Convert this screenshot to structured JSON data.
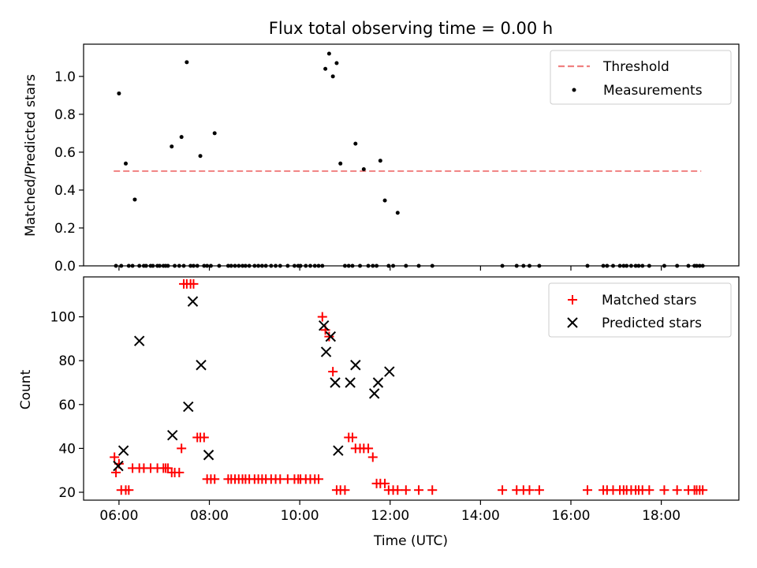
{
  "chart_data": [
    {
      "type": "scatter",
      "title": "Flux total observing time = 0.00 h",
      "ylabel": "Matched/Predicted stars",
      "xlim": [
        "05:13",
        "19:43"
      ],
      "ylim": [
        0,
        1.17
      ],
      "yticks": [
        "0.0",
        "0.2",
        "0.4",
        "0.6",
        "0.8",
        "1.0"
      ],
      "legend_placement": "top-right",
      "threshold": {
        "name": "Threshold",
        "value": 0.5,
        "x_range": [
          "05:53",
          "18:53"
        ],
        "color": "#f08080",
        "style": "dashed"
      },
      "series": [
        {
          "name": "Measurements",
          "color": "#000000",
          "marker": "dot",
          "x": [
            "05:56",
            "06:00",
            "06:03",
            "06:09",
            "06:13",
            "06:18",
            "06:21",
            "06:27",
            "06:33",
            "06:36",
            "06:42",
            "06:45",
            "06:51",
            "06:54",
            "06:59",
            "07:02",
            "07:05",
            "07:10",
            "07:14",
            "07:20",
            "07:23",
            "07:26",
            "07:30",
            "07:35",
            "07:39",
            "07:44",
            "07:48",
            "07:53",
            "07:57",
            "08:02",
            "08:07",
            "08:13",
            "08:25",
            "08:29",
            "08:34",
            "08:39",
            "08:44",
            "08:48",
            "08:53",
            "09:00",
            "09:05",
            "09:10",
            "09:15",
            "09:22",
            "09:28",
            "09:34",
            "09:44",
            "09:53",
            "09:58",
            "10:01",
            "10:08",
            "10:14",
            "10:20",
            "10:25",
            "10:30",
            "10:34",
            "10:39",
            "10:44",
            "10:49",
            "10:54",
            "11:00",
            "11:05",
            "11:10",
            "11:14",
            "11:20",
            "11:25",
            "11:31",
            "11:37",
            "11:42",
            "11:47",
            "11:53",
            "11:58",
            "12:04",
            "12:10",
            "12:21",
            "12:38",
            "12:56",
            "14:29",
            "14:48",
            "14:57",
            "15:05",
            "15:18",
            "16:22",
            "16:43",
            "16:48",
            "16:56",
            "17:05",
            "17:10",
            "17:14",
            "17:20",
            "17:26",
            "17:30",
            "17:35",
            "17:44",
            "18:04",
            "18:21",
            "18:36",
            "18:44",
            "18:47",
            "18:51",
            "18:55"
          ],
          "y": [
            0.0,
            0.91,
            0.0,
            0.54,
            0.0,
            0.0,
            0.35,
            0.0,
            0.0,
            0.0,
            0.0,
            0.0,
            0.0,
            0.0,
            0.0,
            0.0,
            0.0,
            0.63,
            0.0,
            0.0,
            0.68,
            0.0,
            1.075,
            0.0,
            0.0,
            0.0,
            0.58,
            0.0,
            0.0,
            0.0,
            0.7,
            0.0,
            0.0,
            0.0,
            0.0,
            0.0,
            0.0,
            0.0,
            0.0,
            0.0,
            0.0,
            0.0,
            0.0,
            0.0,
            0.0,
            0.0,
            0.0,
            0.0,
            0.0,
            0.0,
            0.0,
            0.0,
            0.0,
            0.0,
            0.0,
            1.04,
            1.12,
            1.0,
            1.07,
            0.54,
            0.0,
            0.0,
            0.0,
            0.645,
            0.0,
            0.51,
            0.0,
            0.0,
            0.0,
            0.555,
            0.345,
            0.0,
            0.0,
            0.28,
            0.0,
            0.0,
            0.0,
            0.0,
            0.0,
            0.0,
            0.0,
            0.0,
            0.0,
            0.0,
            0.0,
            0.0,
            0.0,
            0.0,
            0.0,
            0.0,
            0.0,
            0.0,
            0.0,
            0.0,
            0.0,
            0.0,
            0.0,
            0.0,
            0.0,
            0.0,
            0.0
          ]
        }
      ]
    },
    {
      "type": "scatter",
      "xlabel": "Time (UTC)",
      "ylabel": "Count",
      "xlim": [
        "05:13",
        "19:43"
      ],
      "ylim": [
        16.4,
        118.2
      ],
      "yticks": [
        "20",
        "40",
        "60",
        "80",
        "100"
      ],
      "xticks": [
        "06:00",
        "08:00",
        "10:00",
        "12:00",
        "14:00",
        "16:00",
        "18:00"
      ],
      "legend_placement": "top-right",
      "series": [
        {
          "name": "Matched stars",
          "color": "#ff0000",
          "marker": "plus",
          "x": [
            "05:54",
            "05:56",
            "06:00",
            "06:03",
            "06:09",
            "06:13",
            "06:18",
            "06:27",
            "06:33",
            "06:42",
            "06:51",
            "06:59",
            "07:02",
            "07:05",
            "07:10",
            "07:14",
            "07:20",
            "07:23",
            "07:26",
            "07:30",
            "07:35",
            "07:39",
            "07:44",
            "07:48",
            "07:53",
            "07:57",
            "08:02",
            "08:07",
            "08:25",
            "08:29",
            "08:34",
            "08:39",
            "08:44",
            "08:48",
            "08:53",
            "09:00",
            "09:05",
            "09:10",
            "09:15",
            "09:22",
            "09:28",
            "09:34",
            "09:44",
            "09:53",
            "09:58",
            "10:01",
            "10:08",
            "10:14",
            "10:20",
            "10:25",
            "10:30",
            "10:34",
            "10:39",
            "10:44",
            "10:49",
            "10:54",
            "11:00",
            "11:05",
            "11:10",
            "11:14",
            "11:20",
            "11:25",
            "11:31",
            "11:37",
            "11:42",
            "11:47",
            "11:53",
            "11:58",
            "12:04",
            "12:10",
            "12:21",
            "12:38",
            "12:56",
            "14:29",
            "14:48",
            "14:57",
            "15:05",
            "15:18",
            "16:22",
            "16:43",
            "16:48",
            "16:56",
            "17:05",
            "17:10",
            "17:14",
            "17:20",
            "17:26",
            "17:30",
            "17:35",
            "17:44",
            "18:04",
            "18:21",
            "18:36",
            "18:44",
            "18:47",
            "18:51",
            "18:55"
          ],
          "y": [
            36,
            29,
            33,
            21,
            21,
            21,
            31,
            31,
            31,
            31,
            31,
            31,
            31,
            31,
            29,
            29,
            29,
            40,
            115,
            115,
            115,
            115,
            45,
            45,
            45,
            26,
            26,
            26,
            26,
            26,
            26,
            26,
            26,
            26,
            26,
            26,
            26,
            26,
            26,
            26,
            26,
            26,
            26,
            26,
            26,
            26,
            26,
            26,
            26,
            26,
            100,
            94,
            91,
            75,
            21,
            21,
            21,
            45,
            45,
            40,
            40,
            40,
            40,
            36,
            24,
            24,
            24,
            21,
            21,
            21,
            21,
            21,
            21,
            21,
            21,
            21,
            21,
            21,
            21,
            21,
            21,
            21,
            21,
            21,
            21,
            21,
            21,
            21,
            21,
            21,
            21,
            21,
            21,
            21,
            21,
            21,
            21
          ]
        },
        {
          "name": "Predicted stars",
          "color": "#000000",
          "marker": "x",
          "x": [
            "05:59",
            "06:06",
            "06:27",
            "07:11",
            "07:32",
            "07:38",
            "07:49",
            "07:59",
            "10:32",
            "10:35",
            "10:41",
            "10:47",
            "10:51",
            "11:07",
            "11:14",
            "11:39",
            "11:44",
            "11:59"
          ],
          "y": [
            32,
            39,
            89,
            46,
            59,
            107,
            78,
            37,
            96,
            84,
            91,
            70,
            39,
            70,
            78,
            65,
            70,
            75
          ]
        }
      ]
    }
  ]
}
